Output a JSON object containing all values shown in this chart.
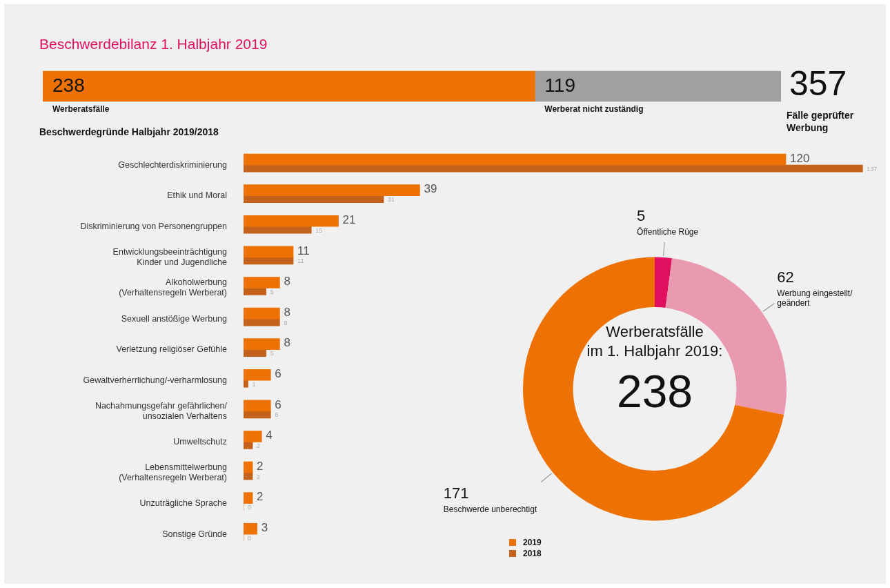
{
  "chart_data": [
    {
      "type": "bar",
      "orientation": "horizontal",
      "stacked": true,
      "title": "Beschwerdebilanz 1. Halbjahr 2019",
      "categories": [
        null
      ],
      "series": [
        {
          "name": "Werberatsfälle",
          "color": "#ee7203",
          "values": [
            238
          ]
        },
        {
          "name": "Werberat nicht zuständig",
          "color": "#a0a0a0",
          "values": [
            119
          ]
        }
      ],
      "data_labels": true,
      "totals": [
        "357"
      ],
      "annotations": [
        "Fälle geprüfter Werbung"
      ],
      "tick_labels": false,
      "legend": false,
      "grid": false
    },
    {
      "type": "bar",
      "orientation": "horizontal",
      "title": "Beschwerdegründe Halbjahr 2019/2018",
      "categories": [
        "Geschlechterdiskriminierung",
        "Ethik und Moral",
        "Diskriminierung von Personengruppen",
        "Entwicklungsbeeinträchtigung\nKinder und Jugendliche",
        "Alkoholwerbung\n(Verhaltensregeln Werberat)",
        "Sexuell anstößige Werbung",
        "Verletzung religiöser Gefühle",
        "Gewaltverherrlichung/-verharmlosung",
        "Nachahmungsgefahr gefährlichen/\nunsozialen Verhaltens",
        "Umweltschutz",
        "Lebensmittelwerbung\n(Verhaltensregeln Werberat)",
        "Unzuträgliche Sprache",
        "Sonstige Gründe"
      ],
      "series": [
        {
          "name": "2019",
          "color": "#ee7203",
          "values": [
            120,
            39,
            21,
            11,
            8,
            8,
            8,
            6,
            6,
            4,
            2,
            2,
            3
          ]
        },
        {
          "name": "2018",
          "color": "#c4621c",
          "values": [
            137,
            31,
            15,
            11,
            5,
            8,
            5,
            1,
            6,
            2,
            2,
            0,
            0
          ]
        }
      ],
      "data_labels": true,
      "tick_labels": "y",
      "legend": "bottom right",
      "grid": false
    },
    {
      "type": "donut",
      "title": "Werberatsfälle\nim 1. Halbjahr 2019:",
      "annotations": [
        "238"
      ],
      "categories": [
        "Öffentliche Rüge",
        "Werbung eingestellt/\ngeändert",
        "Beschwerde unberechtigt"
      ],
      "values": [
        5,
        62,
        171
      ],
      "colors": [
        "#e0105e",
        "#e99ab0",
        "#ee7203"
      ],
      "data_labels": true,
      "legend": false
    }
  ]
}
